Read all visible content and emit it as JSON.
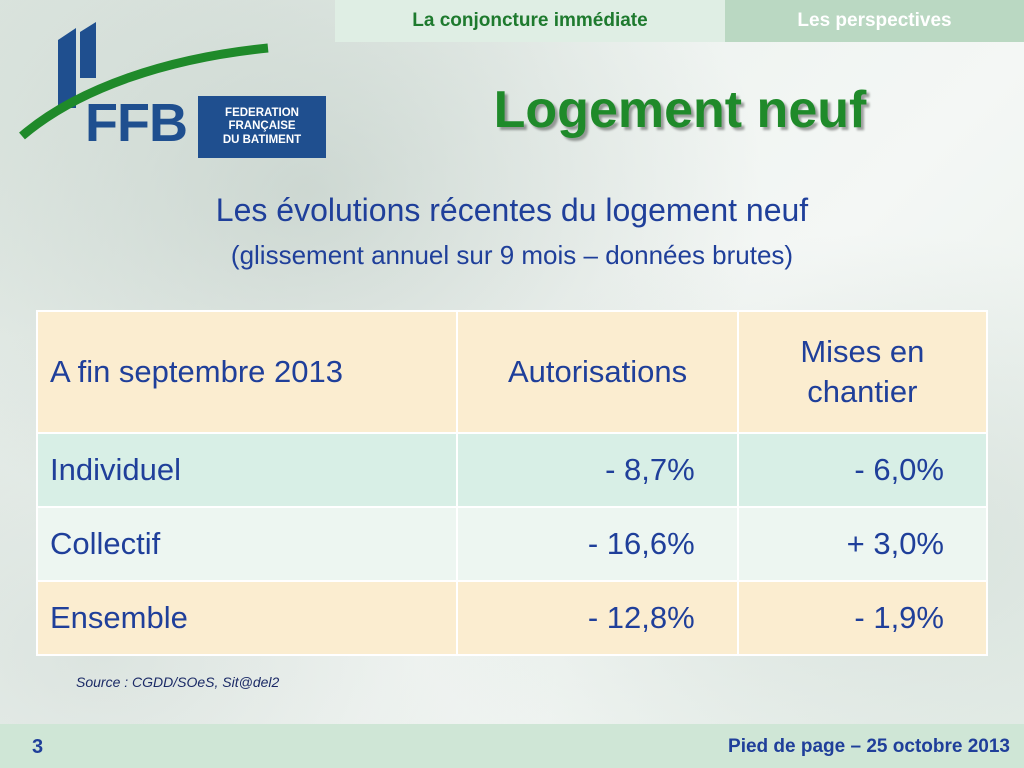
{
  "nav": {
    "tab_current": "La conjoncture immédiate",
    "tab_next": "Les perspectives"
  },
  "logo": {
    "acronym": "FFB",
    "line1": "FEDERATION",
    "line2": "FRANÇAISE",
    "line3": "DU BATIMENT"
  },
  "title": "Logement neuf",
  "subtitle": {
    "line1": "Les évolutions récentes du logement neuf",
    "line2": "(glissement annuel sur 9 mois – données brutes)"
  },
  "table": {
    "header": {
      "col1": "A fin septembre 2013",
      "col2": "Autorisations",
      "col3_line1": "Mises en",
      "col3_line2": "chantier"
    },
    "rows": [
      {
        "label": "Individuel",
        "autorisations": "- 8,7%",
        "mises": "- 6,0%"
      },
      {
        "label": "Collectif",
        "autorisations": "- 16,6%",
        "mises": "+ 3,0%"
      },
      {
        "label": "Ensemble",
        "autorisations": "- 12,8%",
        "mises": "- 1,9%"
      }
    ]
  },
  "source": "Source : CGDD/SOeS, Sit@del2",
  "footer": {
    "page_number": "3",
    "text": "Pied de page – 25 octobre 2013"
  },
  "colors": {
    "title_green": "#1f8a2a",
    "text_blue": "#1f3f9a",
    "logo_blue": "#1f4f8f"
  }
}
